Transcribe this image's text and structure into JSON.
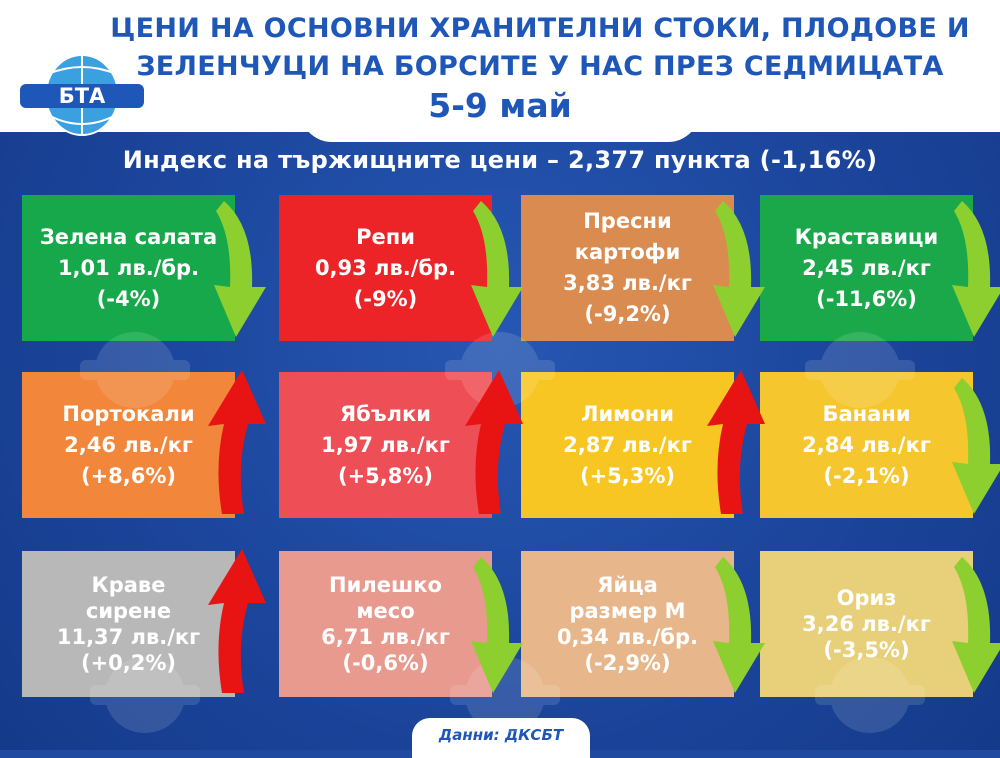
{
  "header": {
    "title_line1": "ЦЕНИ НА ОСНОВНИ ХРАНИТЕЛНИ СТОКИ, ПЛОДОВЕ И",
    "title_line2": "ЗЕЛЕНЧУЦИ НА БОРСИТЕ У НАС ПРЕЗ СЕДМИЦАТА",
    "dates": "5-9 май",
    "logo_text": "БТА"
  },
  "index_line": "Индекс на тържищните цени – 2,377 пункта (-1,16%)",
  "colors": {
    "background": "#1b449a",
    "down_arrow": "#8ccf2e",
    "up_arrow": "#e81414"
  },
  "cards": [
    {
      "name_lines": [
        "Зелена салата"
      ],
      "price": "1,01 лв./бр.",
      "change": "(-4%)",
      "trend": "down",
      "color": "#16a84a"
    },
    {
      "name_lines": [
        "Репи"
      ],
      "price": "0,93 лв./бр.",
      "change": "(-9%)",
      "trend": "down",
      "color": "#ec2327"
    },
    {
      "name_lines": [
        "Пресни",
        "картофи"
      ],
      "price": "3,83 лв./кг",
      "change": "(-9,2%)",
      "trend": "down",
      "color": "#d98b50"
    },
    {
      "name_lines": [
        "Краставици"
      ],
      "price": "2,45 лв./кг",
      "change": "(-11,6%)",
      "trend": "down",
      "color": "#1aa84b"
    },
    {
      "name_lines": [
        "Портокали"
      ],
      "price": "2,46 лв./кг",
      "change": "(+8,6%)",
      "trend": "up",
      "color": "#f2863a"
    },
    {
      "name_lines": [
        "Ябълки"
      ],
      "price": "1,97 лв./кг",
      "change": "(+5,8%)",
      "trend": "up",
      "color": "#ee4e55"
    },
    {
      "name_lines": [
        "Лимони"
      ],
      "price": "2,87 лв./кг",
      "change": "(+5,3%)",
      "trend": "up",
      "color": "#f7c623"
    },
    {
      "name_lines": [
        "Банани"
      ],
      "price": "2,84 лв./кг",
      "change": "(-2,1%)",
      "trend": "down",
      "color": "#f5c62e"
    },
    {
      "name_lines": [
        "Краве",
        "сирене"
      ],
      "price": "11,37 лв./кг",
      "change": "(+0,2%)",
      "trend": "up",
      "color": "#b8b8b8"
    },
    {
      "name_lines": [
        "Пилешко",
        "месо"
      ],
      "price": "6,71 лв./кг",
      "change": "(-0,6%)",
      "trend": "down",
      "color": "#e89a8e"
    },
    {
      "name_lines": [
        "Яйца",
        "размер М"
      ],
      "price": "0,34 лв./бр.",
      "change": "(-2,9%)",
      "trend": "down",
      "color": "#e7b78b"
    },
    {
      "name_lines": [
        "Ориз"
      ],
      "price": "3,26 лв./кг",
      "change": "(-3,5%)",
      "trend": "down",
      "color": "#e8cf79"
    }
  ],
  "footer": "Данни: ДКСБТ"
}
